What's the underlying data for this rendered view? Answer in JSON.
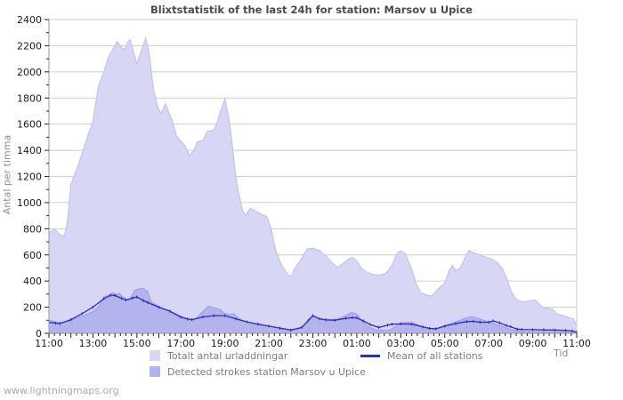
{
  "page": {
    "footer_link": "www.lightningmaps.org"
  },
  "chart_data": {
    "type": "area",
    "title": "Blixtstatistik of the last 24h for station: Marsov u Upice",
    "xlabel": "Tid",
    "ylabel": "Antal per timma",
    "ylim": [
      0,
      2400
    ],
    "ytick_step": 200,
    "x_hours": 24,
    "grid": "horizontal-only",
    "legend_position": "bottom",
    "x_tick_labels": [
      "11:00",
      "13:00",
      "15:00",
      "17:00",
      "19:00",
      "21:00",
      "23:00",
      "01:00",
      "03:00",
      "05:00",
      "07:00",
      "09:00",
      "11:00"
    ],
    "y_tick_labels": [
      "0",
      "200",
      "400",
      "600",
      "800",
      "1000",
      "1200",
      "1400",
      "1600",
      "1800",
      "2000",
      "2200",
      "2400"
    ],
    "colors": {
      "grid": "#cccccc",
      "axis": "#999999",
      "tick": "#222222",
      "tick_label": "#1a1a1a"
    },
    "series": [
      {
        "name": "Totalt antal urladdningar",
        "type": "area",
        "color": "#d7d7f5",
        "edge": "#c2c2ec",
        "points": [
          [
            0,
            770
          ],
          [
            0.25,
            795
          ],
          [
            0.5,
            755
          ],
          [
            0.7,
            745
          ],
          [
            0.85,
            860
          ],
          [
            1,
            1140
          ],
          [
            1.25,
            1250
          ],
          [
            1.5,
            1370
          ],
          [
            1.75,
            1500
          ],
          [
            2,
            1620
          ],
          [
            2.25,
            1890
          ],
          [
            2.5,
            2000
          ],
          [
            2.7,
            2110
          ],
          [
            2.9,
            2170
          ],
          [
            3.1,
            2230
          ],
          [
            3.3,
            2185
          ],
          [
            3.45,
            2170
          ],
          [
            3.6,
            2230
          ],
          [
            3.7,
            2245
          ],
          [
            3.85,
            2150
          ],
          [
            4,
            2060
          ],
          [
            4.2,
            2160
          ],
          [
            4.4,
            2255
          ],
          [
            4.55,
            2150
          ],
          [
            4.75,
            1870
          ],
          [
            4.95,
            1730
          ],
          [
            5.1,
            1680
          ],
          [
            5.3,
            1755
          ],
          [
            5.45,
            1690
          ],
          [
            5.6,
            1630
          ],
          [
            5.8,
            1510
          ],
          [
            6,
            1470
          ],
          [
            6.2,
            1430
          ],
          [
            6.4,
            1360
          ],
          [
            6.6,
            1400
          ],
          [
            6.75,
            1465
          ],
          [
            7,
            1475
          ],
          [
            7.2,
            1545
          ],
          [
            7.5,
            1555
          ],
          [
            7.65,
            1610
          ],
          [
            7.8,
            1700
          ],
          [
            8,
            1790
          ],
          [
            8.15,
            1670
          ],
          [
            8.3,
            1500
          ],
          [
            8.45,
            1260
          ],
          [
            8.6,
            1090
          ],
          [
            8.8,
            940
          ],
          [
            8.95,
            900
          ],
          [
            9.15,
            955
          ],
          [
            9.3,
            945
          ],
          [
            9.6,
            915
          ],
          [
            9.9,
            895
          ],
          [
            10.1,
            800
          ],
          [
            10.3,
            640
          ],
          [
            10.55,
            530
          ],
          [
            10.8,
            460
          ],
          [
            11,
            430
          ],
          [
            11.2,
            500
          ],
          [
            11.5,
            575
          ],
          [
            11.75,
            645
          ],
          [
            12,
            650
          ],
          [
            12.3,
            635
          ],
          [
            12.6,
            590
          ],
          [
            12.85,
            545
          ],
          [
            13.1,
            505
          ],
          [
            13.35,
            530
          ],
          [
            13.6,
            565
          ],
          [
            13.8,
            580
          ],
          [
            14,
            555
          ],
          [
            14.2,
            500
          ],
          [
            14.5,
            462
          ],
          [
            14.75,
            450
          ],
          [
            15,
            445
          ],
          [
            15.3,
            455
          ],
          [
            15.6,
            520
          ],
          [
            15.85,
            615
          ],
          [
            16,
            630
          ],
          [
            16.2,
            610
          ],
          [
            16.5,
            490
          ],
          [
            16.7,
            380
          ],
          [
            16.9,
            310
          ],
          [
            17.2,
            290
          ],
          [
            17.4,
            285
          ],
          [
            17.7,
            340
          ],
          [
            18,
            385
          ],
          [
            18.2,
            480
          ],
          [
            18.35,
            520
          ],
          [
            18.5,
            480
          ],
          [
            18.7,
            500
          ],
          [
            18.9,
            570
          ],
          [
            19.1,
            635
          ],
          [
            19.3,
            615
          ],
          [
            19.6,
            600
          ],
          [
            19.9,
            580
          ],
          [
            20.1,
            570
          ],
          [
            20.4,
            540
          ],
          [
            20.6,
            500
          ],
          [
            20.8,
            430
          ],
          [
            21,
            330
          ],
          [
            21.2,
            265
          ],
          [
            21.4,
            245
          ],
          [
            21.6,
            240
          ],
          [
            21.9,
            250
          ],
          [
            22.1,
            255
          ],
          [
            22.3,
            220
          ],
          [
            22.5,
            195
          ],
          [
            22.7,
            190
          ],
          [
            22.9,
            185
          ],
          [
            23.1,
            148
          ],
          [
            23.3,
            140
          ],
          [
            23.5,
            128
          ],
          [
            23.7,
            118
          ],
          [
            23.85,
            110
          ],
          [
            24,
            55
          ]
        ]
      },
      {
        "name": "Detected strokes station Marsov u Upice",
        "type": "area",
        "color": "#b3b3ee",
        "edge": "#a0a0e4",
        "points": [
          [
            0,
            100
          ],
          [
            0.3,
            88
          ],
          [
            0.5,
            80
          ],
          [
            0.75,
            88
          ],
          [
            1,
            100
          ],
          [
            1.5,
            130
          ],
          [
            2,
            165
          ],
          [
            2.3,
            215
          ],
          [
            2.5,
            280
          ],
          [
            2.75,
            295
          ],
          [
            2.9,
            310
          ],
          [
            3.05,
            295
          ],
          [
            3.2,
            305
          ],
          [
            3.5,
            260
          ],
          [
            3.65,
            250
          ],
          [
            3.9,
            330
          ],
          [
            4.1,
            340
          ],
          [
            4.3,
            345
          ],
          [
            4.5,
            315
          ],
          [
            4.65,
            240
          ],
          [
            5,
            205
          ],
          [
            5.25,
            185
          ],
          [
            5.5,
            165
          ],
          [
            5.75,
            140
          ],
          [
            6,
            120
          ],
          [
            6.3,
            105
          ],
          [
            6.6,
            100
          ],
          [
            6.9,
            150
          ],
          [
            7.1,
            185
          ],
          [
            7.25,
            205
          ],
          [
            7.5,
            195
          ],
          [
            7.75,
            185
          ],
          [
            8,
            150
          ],
          [
            8.2,
            145
          ],
          [
            8.4,
            150
          ],
          [
            8.6,
            120
          ],
          [
            8.8,
            100
          ],
          [
            9,
            85
          ],
          [
            9.5,
            70
          ],
          [
            10,
            55
          ],
          [
            10.5,
            38
          ],
          [
            11,
            25
          ],
          [
            11.3,
            35
          ],
          [
            11.6,
            60
          ],
          [
            12,
            130
          ],
          [
            12.3,
            115
          ],
          [
            12.6,
            108
          ],
          [
            13,
            105
          ],
          [
            13.3,
            120
          ],
          [
            13.6,
            145
          ],
          [
            13.75,
            160
          ],
          [
            14,
            148
          ],
          [
            14.2,
            100
          ],
          [
            14.5,
            50
          ],
          [
            14.8,
            30
          ],
          [
            15,
            25
          ],
          [
            15.5,
            25
          ],
          [
            15.8,
            55
          ],
          [
            16,
            80
          ],
          [
            16.3,
            85
          ],
          [
            16.6,
            78
          ],
          [
            17,
            45
          ],
          [
            17.5,
            28
          ],
          [
            18,
            60
          ],
          [
            18.3,
            75
          ],
          [
            18.6,
            95
          ],
          [
            19,
            120
          ],
          [
            19.25,
            128
          ],
          [
            19.5,
            115
          ],
          [
            20,
            85
          ],
          [
            20.5,
            60
          ],
          [
            21,
            28
          ],
          [
            21.5,
            15
          ],
          [
            22,
            12
          ],
          [
            23,
            10
          ],
          [
            24,
            5
          ]
        ]
      },
      {
        "name": "Mean of all stations",
        "type": "line",
        "color": "#2c2cc4",
        "points": [
          [
            0,
            85
          ],
          [
            0.3,
            78
          ],
          [
            0.5,
            75
          ],
          [
            1,
            105
          ],
          [
            1.5,
            150
          ],
          [
            2,
            200
          ],
          [
            2.5,
            265
          ],
          [
            2.8,
            292
          ],
          [
            3,
            290
          ],
          [
            3.3,
            268
          ],
          [
            3.5,
            255
          ],
          [
            3.8,
            270
          ],
          [
            4,
            278
          ],
          [
            4.3,
            250
          ],
          [
            4.5,
            235
          ],
          [
            5,
            200
          ],
          [
            5.5,
            170
          ],
          [
            6,
            125
          ],
          [
            6.3,
            110
          ],
          [
            6.5,
            105
          ],
          [
            7,
            125
          ],
          [
            7.5,
            135
          ],
          [
            8,
            135
          ],
          [
            8.5,
            110
          ],
          [
            9,
            88
          ],
          [
            9.5,
            70
          ],
          [
            10,
            55
          ],
          [
            10.5,
            40
          ],
          [
            11,
            25
          ],
          [
            11.5,
            45
          ],
          [
            11.8,
            100
          ],
          [
            12,
            135
          ],
          [
            12.3,
            110
          ],
          [
            12.6,
            103
          ],
          [
            13,
            100
          ],
          [
            13.5,
            115
          ],
          [
            13.8,
            120
          ],
          [
            14,
            118
          ],
          [
            14.3,
            95
          ],
          [
            14.6,
            68
          ],
          [
            15,
            45
          ],
          [
            15.4,
            62
          ],
          [
            15.6,
            70
          ],
          [
            16,
            72
          ],
          [
            16.5,
            70
          ],
          [
            17,
            50
          ],
          [
            17.3,
            38
          ],
          [
            17.6,
            35
          ],
          [
            18,
            55
          ],
          [
            18.5,
            75
          ],
          [
            19,
            90
          ],
          [
            19.3,
            92
          ],
          [
            19.6,
            85
          ],
          [
            20,
            85
          ],
          [
            20.2,
            95
          ],
          [
            20.5,
            80
          ],
          [
            20.8,
            60
          ],
          [
            21,
            50
          ],
          [
            21.3,
            32
          ],
          [
            21.5,
            30
          ],
          [
            22,
            28
          ],
          [
            22.5,
            26
          ],
          [
            23,
            25
          ],
          [
            23.5,
            22
          ],
          [
            23.8,
            18
          ],
          [
            24,
            8
          ]
        ]
      }
    ]
  }
}
